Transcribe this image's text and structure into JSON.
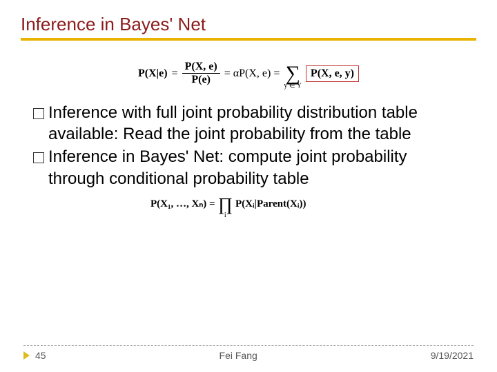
{
  "title": {
    "text": "Inference in Bayes' Net",
    "color": "#8b1a1a",
    "fontsize": 26
  },
  "underline_color": "#e8b400",
  "formula1": {
    "lhs": "P(X|e)",
    "frac_num": "P(X, e)",
    "frac_den": "P(e)",
    "eq_alpha": "= αP(X, e) =",
    "sum_lower": "y ∈ Y",
    "boxed": "P(X, e, y)",
    "box_color": "#c23030"
  },
  "bullets": [
    {
      "text": "Inference with full joint probability distribution table available: Read the joint probability from the table"
    },
    {
      "text": "Inference in Bayes' Net: compute joint probability through conditional probability table"
    }
  ],
  "formula2": {
    "lhs": "P(X₁, …, Xₙ) =",
    "prod_lower": "i",
    "rhs": "P(Xᵢ|Parent(Xᵢ))"
  },
  "footer": {
    "page": "45",
    "center": "Fei Fang",
    "date": "9/19/2021",
    "divider_color": "#aaaaaa",
    "triangle_color": "#d9bc1f"
  },
  "body_fontsize": 24
}
